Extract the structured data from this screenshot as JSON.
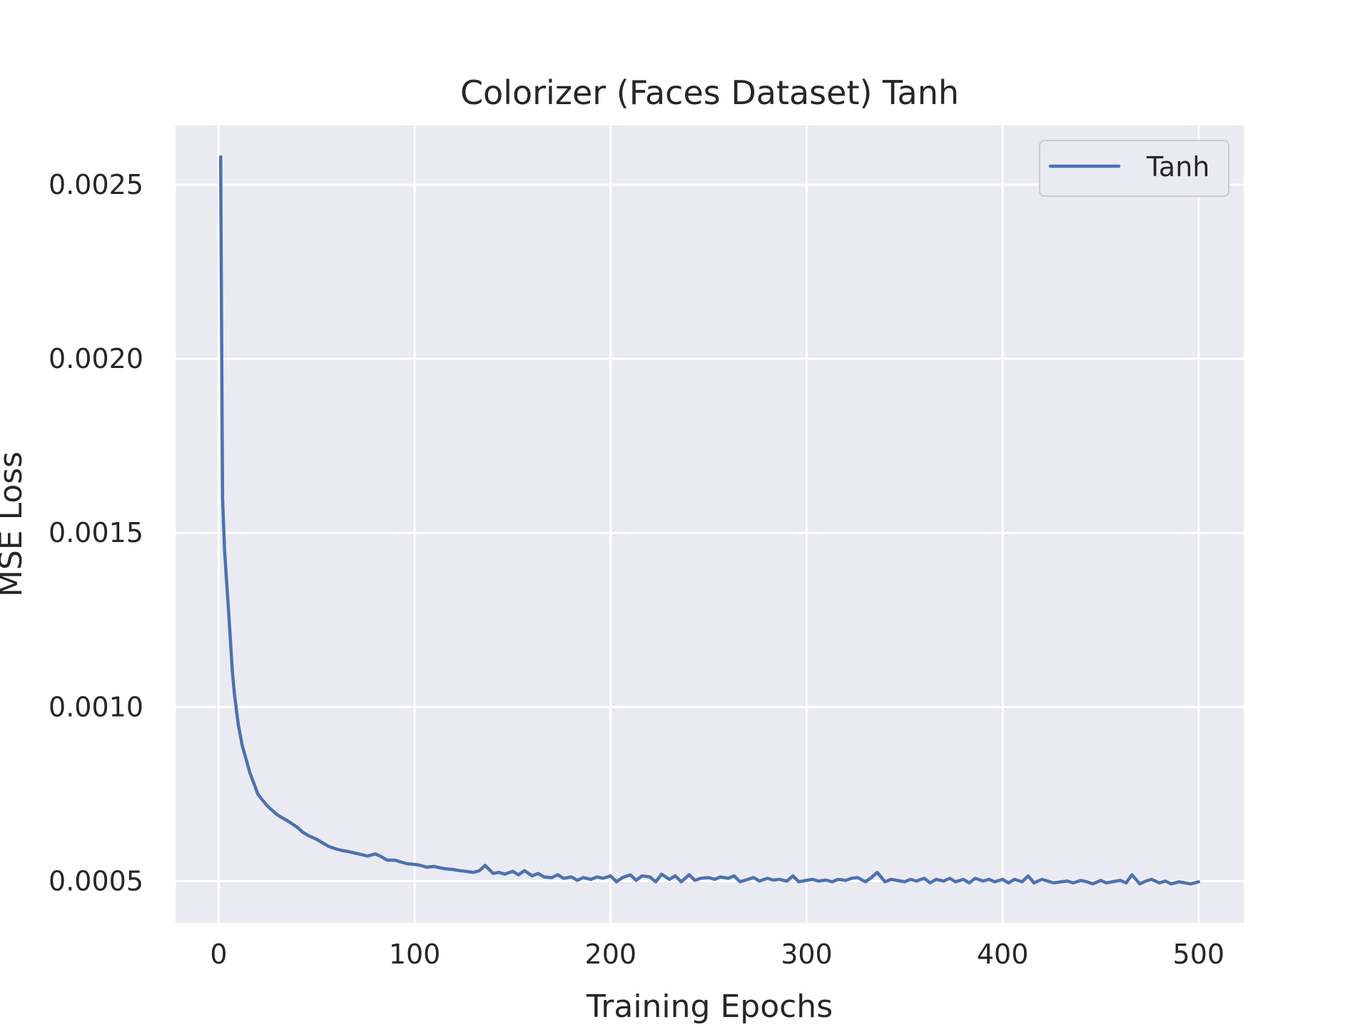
{
  "chart_data": {
    "type": "line",
    "title": "Colorizer (Faces Dataset) Tanh",
    "xlabel": "Training Epochs",
    "ylabel": "MSE Loss",
    "xlim": [
      -22,
      523
    ],
    "ylim": [
      0.00038,
      0.00267
    ],
    "xticks": [
      0,
      100,
      200,
      300,
      400,
      500
    ],
    "xtick_labels": [
      "0",
      "100",
      "200",
      "300",
      "400",
      "500"
    ],
    "yticks": [
      0.0005,
      0.001,
      0.0015,
      0.002,
      0.0025
    ],
    "ytick_labels": [
      "0.0005",
      "0.0010",
      "0.0015",
      "0.0020",
      "0.0025"
    ],
    "grid": true,
    "legend_position": "top-right",
    "background_color": "#eaeaf2",
    "grid_color": "#ffffff",
    "series": [
      {
        "name": "Tanh",
        "color": "#4c72b0",
        "x": [
          1,
          2,
          3,
          5,
          7,
          8,
          10,
          12,
          14,
          16,
          18,
          20,
          22,
          25,
          28,
          30,
          33,
          36,
          40,
          43,
          46,
          50,
          53,
          56,
          60,
          63,
          66,
          70,
          73,
          76,
          80,
          83,
          86,
          90,
          93,
          96,
          100,
          103,
          106,
          110,
          113,
          116,
          120,
          123,
          126,
          130,
          133,
          136,
          140,
          143,
          146,
          150,
          153,
          156,
          160,
          163,
          166,
          170,
          173,
          176,
          180,
          183,
          186,
          190,
          193,
          196,
          200,
          203,
          206,
          210,
          213,
          216,
          220,
          223,
          226,
          230,
          233,
          236,
          240,
          243,
          246,
          250,
          253,
          256,
          260,
          263,
          266,
          270,
          273,
          276,
          280,
          283,
          286,
          290,
          293,
          296,
          300,
          303,
          306,
          310,
          313,
          316,
          320,
          323,
          326,
          330,
          333,
          336,
          340,
          343,
          346,
          350,
          353,
          356,
          360,
          363,
          366,
          370,
          373,
          376,
          380,
          383,
          386,
          390,
          393,
          396,
          400,
          403,
          406,
          410,
          413,
          416,
          420,
          423,
          426,
          430,
          433,
          436,
          440,
          443,
          446,
          450,
          453,
          456,
          460,
          463,
          466,
          470,
          473,
          476,
          480,
          483,
          486,
          490,
          493,
          496,
          500
        ],
        "values": [
          0.00258,
          0.0016,
          0.00145,
          0.00128,
          0.0011,
          0.00104,
          0.00095,
          0.00089,
          0.00085,
          0.00081,
          0.00078,
          0.00075,
          0.000735,
          0.000715,
          0.0007,
          0.00069,
          0.00068,
          0.00067,
          0.000655,
          0.00064,
          0.00063,
          0.00062,
          0.00061,
          0.0006,
          0.000592,
          0.000588,
          0.000585,
          0.00058,
          0.000576,
          0.000572,
          0.000578,
          0.00057,
          0.00056,
          0.00056,
          0.000555,
          0.00055,
          0.000548,
          0.000545,
          0.00054,
          0.000542,
          0.000538,
          0.000535,
          0.000533,
          0.00053,
          0.000528,
          0.000525,
          0.00053,
          0.000545,
          0.000522,
          0.000525,
          0.00052,
          0.000528,
          0.000518,
          0.00053,
          0.000515,
          0.000522,
          0.000512,
          0.00051,
          0.000518,
          0.000508,
          0.000512,
          0.000502,
          0.00051,
          0.000505,
          0.000512,
          0.000508,
          0.000515,
          0.000498,
          0.00051,
          0.000518,
          0.000502,
          0.000515,
          0.000512,
          0.000498,
          0.00052,
          0.000505,
          0.000515,
          0.000498,
          0.000518,
          0.000502,
          0.000508,
          0.00051,
          0.000505,
          0.000512,
          0.000508,
          0.000515,
          0.000498,
          0.000505,
          0.00051,
          0.0005,
          0.000508,
          0.000503,
          0.000505,
          0.0005,
          0.000515,
          0.000498,
          0.000502,
          0.000505,
          0.0005,
          0.000503,
          0.000498,
          0.000505,
          0.000502,
          0.000508,
          0.00051,
          0.000498,
          0.00051,
          0.000525,
          0.000498,
          0.000505,
          0.000502,
          0.000498,
          0.000505,
          0.0005,
          0.000508,
          0.000495,
          0.000505,
          0.0005,
          0.000508,
          0.000498,
          0.000505,
          0.000495,
          0.000508,
          0.0005,
          0.000505,
          0.000498,
          0.000505,
          0.000495,
          0.000505,
          0.000498,
          0.000515,
          0.000495,
          0.000505,
          0.0005,
          0.000495,
          0.000498,
          0.0005,
          0.000495,
          0.000502,
          0.000498,
          0.000492,
          0.000502,
          0.000495,
          0.000498,
          0.000502,
          0.000495,
          0.000518,
          0.000492,
          0.0005,
          0.000505,
          0.000495,
          0.0005,
          0.000492,
          0.000498,
          0.000495,
          0.000492,
          0.000498
        ]
      }
    ]
  }
}
